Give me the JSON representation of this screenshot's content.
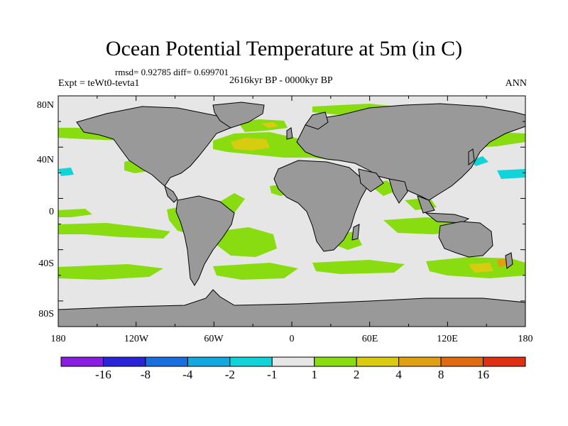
{
  "title": "Ocean Potential Temperature at 5m (in C)",
  "stats": "rmsd= 0.92785 diff= 0.699701",
  "experiment": "Expt = teWt0-tevta1",
  "period": "2616kyr BP - 0000kyr BP",
  "season": "ANN",
  "lat_ticks": [
    "80N",
    "40N",
    "0",
    "40S",
    "80S"
  ],
  "lon_ticks": [
    "180",
    "120W",
    "60W",
    "0",
    "60E",
    "120E",
    "180"
  ],
  "colorbar": {
    "colors": [
      "#8a1ee0",
      "#2a24d8",
      "#1a6fe0",
      "#12a8e0",
      "#10d4d8",
      "#e6e6e6",
      "#88dc10",
      "#d8cc10",
      "#e0a014",
      "#e06a10",
      "#e03014"
    ],
    "labels": [
      "-16",
      "-8",
      "-4",
      "-2",
      "-1",
      "1",
      "2",
      "4",
      "8",
      "16"
    ]
  },
  "map_colors": {
    "ocean_neutral": "#e6e6e6",
    "land": "#999999",
    "coast": "#000000"
  }
}
